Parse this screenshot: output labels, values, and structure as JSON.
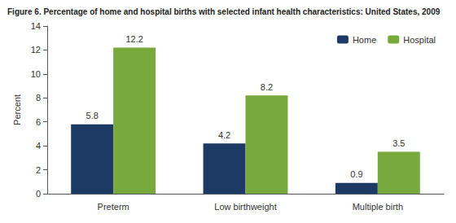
{
  "chart_data": {
    "type": "bar",
    "title": "Figure 6. Percentage of home and hospital births with selected infant health characteristics: United States, 2009",
    "y_label": "Percent",
    "categories": [
      "Preterm",
      "Low birthweight",
      "Multiple birth"
    ],
    "series": [
      {
        "name": "Home",
        "color": "#1c3a64",
        "values": [
          5.8,
          4.2,
          0.9
        ]
      },
      {
        "name": "Hospital",
        "color": "#78a93f",
        "values": [
          12.2,
          8.2,
          3.5
        ]
      }
    ],
    "ylim": [
      0,
      14
    ],
    "yticks": [
      0,
      2,
      4,
      6,
      8,
      10,
      12,
      14
    ],
    "grid": false,
    "legend": "upper right",
    "data_labels": true
  }
}
